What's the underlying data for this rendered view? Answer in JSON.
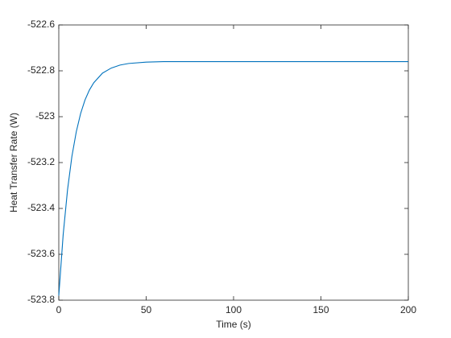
{
  "chart_data": {
    "type": "line",
    "x_label": "Time (s)",
    "y_label": "Heat Transfer Rate (W)",
    "x": [
      0,
      2.5,
      5,
      7.5,
      10,
      12.5,
      15,
      17.5,
      20,
      25,
      30,
      35,
      40,
      50,
      60,
      100,
      150,
      200
    ],
    "series": [
      {
        "color": "#0072bd",
        "values": [
          -523.78,
          -523.515,
          -523.319,
          -523.173,
          -523.066,
          -522.986,
          -522.927,
          -522.884,
          -522.852,
          -522.81,
          -522.788,
          -522.775,
          -522.768,
          -522.762,
          -522.76,
          -522.76,
          -522.76,
          -522.76
        ]
      }
    ],
    "xlim": [
      0,
      200
    ],
    "xticks": [
      0,
      50,
      100,
      150,
      200
    ],
    "ylim": [
      -523.8,
      -522.6
    ],
    "yticks": [
      -523.8,
      -523.6,
      -523.4,
      -523.2,
      -523,
      -522.8,
      -522.6
    ],
    "grid": false,
    "box": true
  }
}
